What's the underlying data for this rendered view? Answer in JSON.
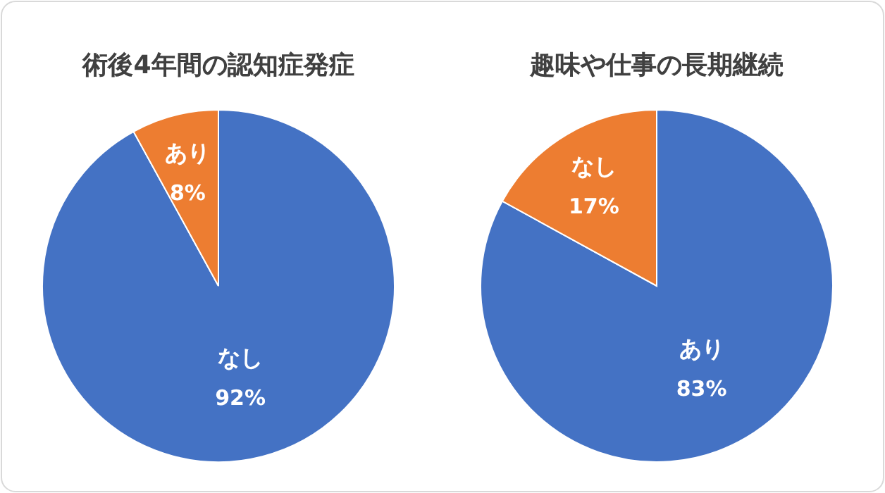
{
  "chart_data": [
    {
      "type": "pie",
      "title": "術後4年間の認知症発症",
      "categories": [
        "なし",
        "あり"
      ],
      "values": [
        92,
        8
      ],
      "colors": [
        "#4472c4",
        "#ed7d31"
      ],
      "value_labels": [
        "92%",
        "8%"
      ],
      "legend": false
    },
    {
      "type": "pie",
      "title": "趣味や仕事の長期継続",
      "categories": [
        "あり",
        "なし"
      ],
      "values": [
        83,
        17
      ],
      "colors": [
        "#4472c4",
        "#ed7d31"
      ],
      "value_labels": [
        "83%",
        "17%"
      ],
      "legend": false
    }
  ]
}
